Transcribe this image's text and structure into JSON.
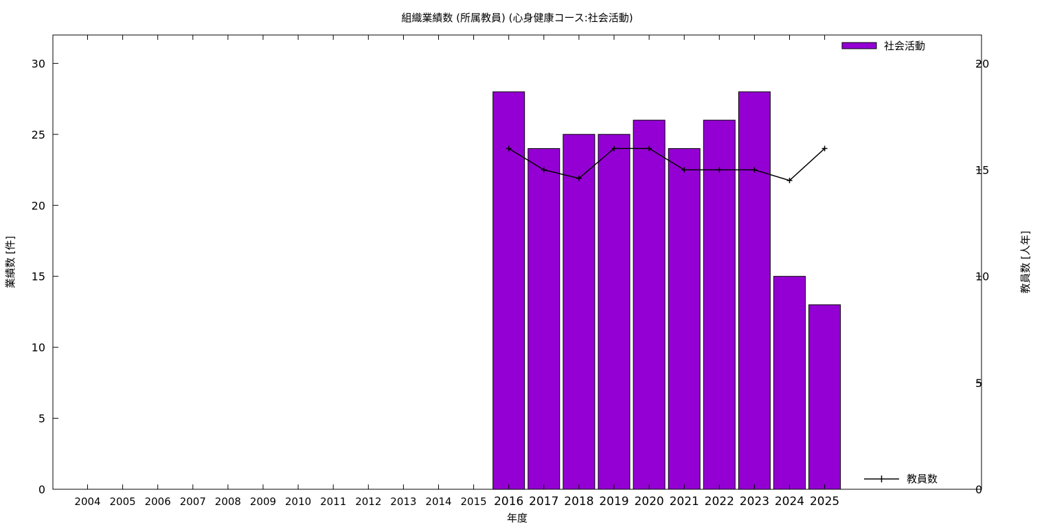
{
  "chart_data": {
    "type": "bar",
    "title": "組織業績数 (所属教員) (心身健康コース:社会活動)",
    "xlabel": "年度",
    "ylabel": "業績数 [件]",
    "y2label": "教員数 [人年]",
    "categories": [
      "2004",
      "2005",
      "2006",
      "2007",
      "2008",
      "2009",
      "2010",
      "2011",
      "2012",
      "2013",
      "2014",
      "2015",
      "2016",
      "2017",
      "2018",
      "2019",
      "2020",
      "2021",
      "2022",
      "2023",
      "2024",
      "2025"
    ],
    "series": [
      {
        "name": "社会活動",
        "kind": "bar",
        "axis": "left",
        "color": "#9400d3",
        "values": [
          0,
          0,
          0,
          0,
          0,
          0,
          0,
          0,
          0,
          0,
          0,
          0,
          28,
          24,
          25,
          25,
          26,
          24,
          26,
          28,
          15,
          13
        ]
      },
      {
        "name": "教員数",
        "kind": "line",
        "axis": "right",
        "color": "#000000",
        "values": [
          null,
          null,
          null,
          null,
          null,
          null,
          null,
          null,
          null,
          null,
          null,
          null,
          16,
          15,
          14.6,
          16,
          16,
          15,
          15,
          15,
          14.5,
          16
        ]
      }
    ],
    "ylim": [
      0,
      32
    ],
    "y_ticks": [
      0,
      5,
      10,
      15,
      20,
      25,
      30
    ],
    "y2lim": [
      0,
      21.33
    ],
    "y2_ticks": [
      0,
      5,
      10,
      15,
      20
    ],
    "legend_position": "top-right / bottom-right",
    "grid": false
  }
}
